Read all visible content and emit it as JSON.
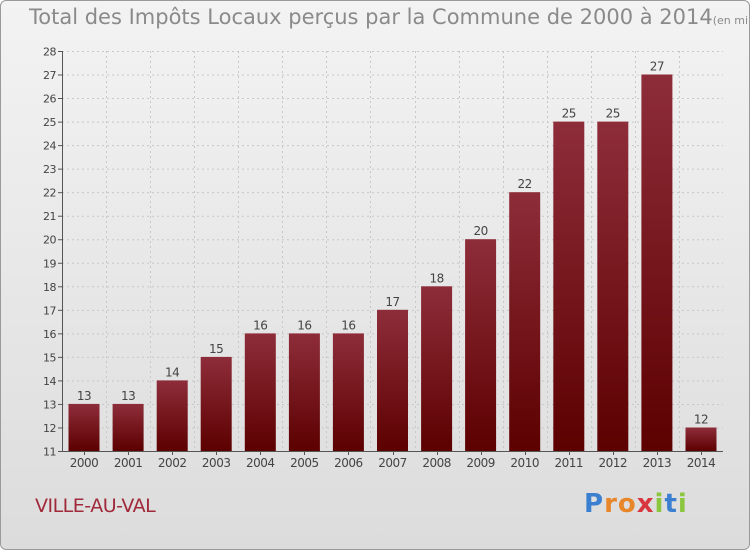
{
  "chart_data": {
    "type": "bar",
    "title": "Total des Impôts Locaux perçus par la Commune de 2000 à 2014",
    "unit": "(en milliers d'€)",
    "categories": [
      "2000",
      "2001",
      "2002",
      "2003",
      "2004",
      "2005",
      "2006",
      "2007",
      "2008",
      "2009",
      "2010",
      "2011",
      "2012",
      "2013",
      "2014"
    ],
    "values": [
      13,
      13,
      14,
      15,
      16,
      16,
      16,
      17,
      18,
      20,
      22,
      25,
      25,
      27,
      12
    ],
    "ylim": [
      11,
      28
    ],
    "yticks": [
      11,
      12,
      13,
      14,
      15,
      16,
      17,
      18,
      19,
      20,
      21,
      22,
      23,
      24,
      25,
      26,
      27,
      28
    ],
    "xlabel": "",
    "ylabel": "",
    "grid": true
  },
  "footer": {
    "commune": "VILLE-AU-VAL",
    "logo_letters": [
      "P",
      "r",
      "o",
      "x",
      "i",
      "t",
      "i"
    ],
    "logo_colors": [
      "#3a7fd0",
      "#e8862a",
      "#e8862a",
      "#d9353f",
      "#8cc63f",
      "#3a7fd0",
      "#8cc63f"
    ]
  },
  "colors": {
    "bar_top": "#8e2d3a",
    "bar_bottom": "#5c0000",
    "grid": "#c8c8c8",
    "axis": "#555555",
    "title": "#8a8a8a"
  }
}
